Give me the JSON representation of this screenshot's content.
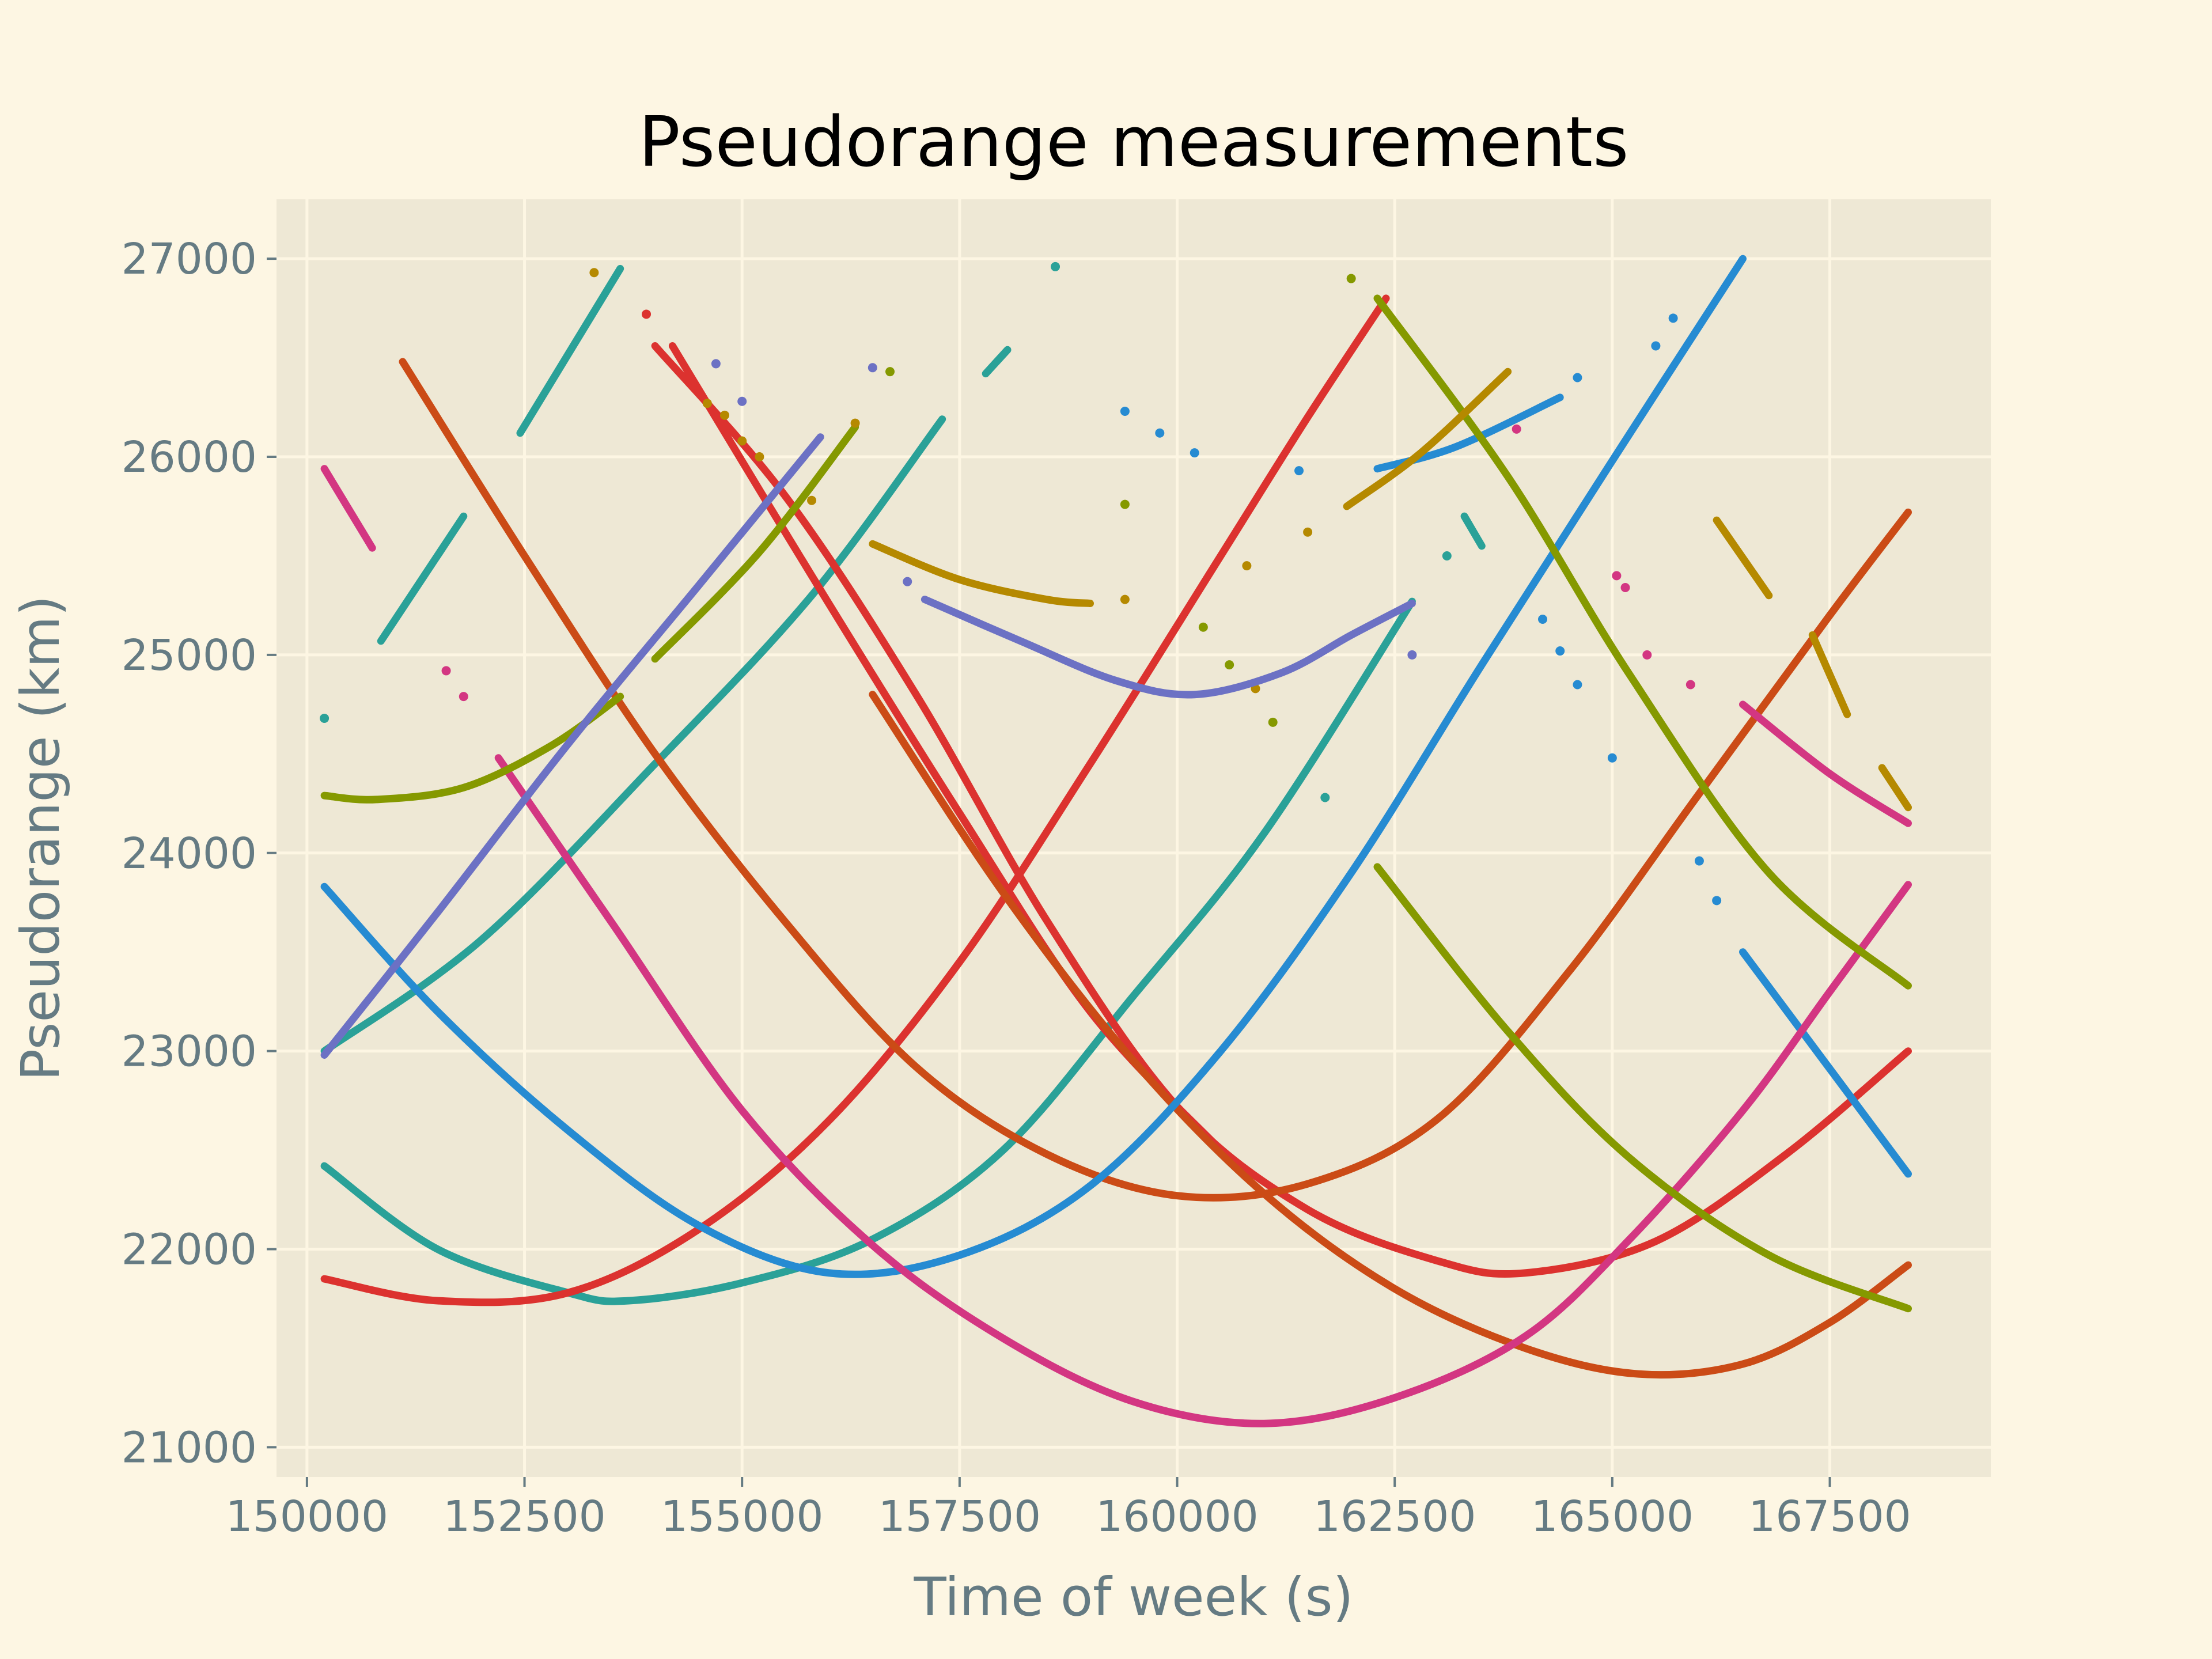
{
  "chart_data": {
    "type": "scatter",
    "title": "Pseudorange measurements",
    "xlabel": "Time of week (s)",
    "ylabel": "Pseudorange (km)",
    "xlim": [
      149650,
      169350
    ],
    "ylim": [
      20850,
      27300
    ],
    "x_ticks": [
      "150000",
      "152500",
      "155000",
      "157500",
      "160000",
      "162500",
      "165000",
      "167500"
    ],
    "x_tick_values": [
      150000,
      152500,
      155000,
      157500,
      160000,
      162500,
      165000,
      167500
    ],
    "y_ticks": [
      "21000",
      "22000",
      "23000",
      "24000",
      "25000",
      "26000",
      "27000"
    ],
    "y_tick_values": [
      21000,
      22000,
      23000,
      24000,
      25000,
      26000,
      27000
    ],
    "grid": true,
    "legend": "none",
    "colors": {
      "background": "#fdf6e3",
      "axes_face": "#eee8d5",
      "grid": "#fdf6e3",
      "text": "#657b83",
      "title": "#000000"
    },
    "series": [
      {
        "color": "#2aa198",
        "style": "line",
        "points": [
          [
            150200,
            22420
          ],
          [
            151500,
            22000
          ],
          [
            153000,
            21780
          ],
          [
            153700,
            21740
          ],
          [
            155000,
            21830
          ],
          [
            156500,
            22050
          ],
          [
            158000,
            22500
          ],
          [
            159500,
            23280
          ],
          [
            161000,
            24100
          ],
          [
            162700,
            25270
          ]
        ]
      },
      {
        "color": "#2aa198",
        "style": "line",
        "points": [
          [
            150200,
            23000
          ],
          [
            152000,
            23560
          ],
          [
            154000,
            24450
          ],
          [
            155800,
            25300
          ],
          [
            157300,
            26190
          ]
        ]
      },
      {
        "color": "#2aa198",
        "style": "line",
        "points": [
          [
            152450,
            26120
          ],
          [
            153600,
            26950
          ]
        ]
      },
      {
        "color": "#2aa198",
        "style": "line",
        "points": [
          [
            150850,
            25070
          ],
          [
            151800,
            25700
          ]
        ]
      },
      {
        "color": "#2aa198",
        "style": "line",
        "points": [
          [
            157800,
            26420
          ],
          [
            158050,
            26540
          ]
        ]
      },
      {
        "color": "#2aa198",
        "style": "line",
        "points": [
          [
            163300,
            25700
          ],
          [
            163500,
            25550
          ]
        ]
      },
      {
        "color": "#2aa198",
        "style": "dots",
        "points": [
          [
            150200,
            24680
          ],
          [
            158600,
            26960
          ],
          [
            161700,
            24280
          ],
          [
            163100,
            25500
          ]
        ]
      },
      {
        "color": "#dc322f",
        "style": "line",
        "points": [
          [
            150200,
            21850
          ],
          [
            151500,
            21740
          ],
          [
            153000,
            21780
          ],
          [
            154500,
            22100
          ],
          [
            156000,
            22650
          ],
          [
            157500,
            23450
          ],
          [
            159000,
            24450
          ],
          [
            160500,
            25500
          ],
          [
            161500,
            26200
          ],
          [
            162400,
            26800
          ]
        ]
      },
      {
        "color": "#dc322f",
        "style": "line",
        "points": [
          [
            154000,
            26560
          ],
          [
            155500,
            25800
          ],
          [
            157000,
            24800
          ],
          [
            158500,
            23660
          ],
          [
            160000,
            22720
          ],
          [
            161500,
            22200
          ],
          [
            163000,
            21940
          ],
          [
            164000,
            21880
          ],
          [
            165500,
            22040
          ],
          [
            167000,
            22480
          ],
          [
            168400,
            23000
          ]
        ]
      },
      {
        "color": "#dc322f",
        "style": "line",
        "points": [
          [
            154200,
            26560
          ],
          [
            155800,
            25400
          ],
          [
            157500,
            24200
          ],
          [
            159000,
            23200
          ],
          [
            160500,
            22500
          ]
        ]
      },
      {
        "color": "#dc322f",
        "style": "dots",
        "points": [
          [
            153900,
            26720
          ]
        ]
      },
      {
        "color": "#cb4b16",
        "style": "line",
        "points": [
          [
            151100,
            26480
          ],
          [
            152500,
            25500
          ],
          [
            154000,
            24500
          ],
          [
            155500,
            23650
          ],
          [
            157000,
            22920
          ],
          [
            158500,
            22480
          ],
          [
            160000,
            22270
          ],
          [
            161500,
            22330
          ],
          [
            163000,
            22660
          ],
          [
            164500,
            23400
          ],
          [
            166000,
            24300
          ],
          [
            167500,
            25200
          ],
          [
            168400,
            25720
          ]
        ]
      },
      {
        "color": "#cb4b16",
        "style": "line",
        "points": [
          [
            156500,
            24800
          ],
          [
            158000,
            23800
          ],
          [
            159500,
            22950
          ],
          [
            161000,
            22280
          ],
          [
            162500,
            21800
          ],
          [
            164000,
            21500
          ],
          [
            165300,
            21370
          ],
          [
            166500,
            21420
          ],
          [
            167500,
            21630
          ],
          [
            168400,
            21920
          ]
        ]
      },
      {
        "color": "#268bd2",
        "style": "line",
        "points": [
          [
            150200,
            23830
          ],
          [
            151500,
            23200
          ],
          [
            153000,
            22600
          ],
          [
            154500,
            22120
          ],
          [
            156000,
            21880
          ],
          [
            157500,
            21970
          ],
          [
            159000,
            22320
          ],
          [
            160500,
            23000
          ],
          [
            162000,
            23900
          ],
          [
            163500,
            24950
          ],
          [
            165000,
            25980
          ],
          [
            166500,
            27000
          ]
        ]
      },
      {
        "color": "#268bd2",
        "style": "line",
        "points": [
          [
            162300,
            25940
          ],
          [
            163200,
            26050
          ],
          [
            164400,
            26300
          ]
        ]
      },
      {
        "color": "#268bd2",
        "style": "line",
        "points": [
          [
            166500,
            23500
          ],
          [
            168400,
            22380
          ]
        ]
      },
      {
        "color": "#268bd2",
        "style": "dots",
        "points": [
          [
            159400,
            26230
          ],
          [
            159800,
            26120
          ],
          [
            160200,
            26020
          ],
          [
            161400,
            25930
          ],
          [
            164200,
            25180
          ],
          [
            164400,
            25020
          ],
          [
            164600,
            24850
          ],
          [
            165000,
            24480
          ],
          [
            165500,
            26560
          ],
          [
            165700,
            26700
          ],
          [
            166000,
            23960
          ],
          [
            166200,
            23760
          ],
          [
            164600,
            26400
          ]
        ]
      },
      {
        "color": "#d33682",
        "style": "line",
        "points": [
          [
            152200,
            24480
          ],
          [
            153500,
            23650
          ],
          [
            155000,
            22700
          ],
          [
            156500,
            22020
          ],
          [
            158000,
            21550
          ],
          [
            159500,
            21230
          ],
          [
            161000,
            21120
          ],
          [
            162500,
            21250
          ],
          [
            164000,
            21560
          ],
          [
            165200,
            22050
          ],
          [
            166500,
            22700
          ],
          [
            167500,
            23300
          ],
          [
            168400,
            23840
          ]
        ]
      },
      {
        "color": "#d33682",
        "style": "line",
        "points": [
          [
            150200,
            25940
          ],
          [
            150750,
            25540
          ]
        ]
      },
      {
        "color": "#d33682",
        "style": "line",
        "points": [
          [
            166500,
            24750
          ],
          [
            167500,
            24400
          ],
          [
            168400,
            24150
          ]
        ]
      },
      {
        "color": "#d33682",
        "style": "dots",
        "points": [
          [
            151600,
            24920
          ],
          [
            151800,
            24790
          ],
          [
            163900,
            26140
          ],
          [
            165050,
            25400
          ],
          [
            165150,
            25340
          ],
          [
            165400,
            25000
          ],
          [
            165900,
            24850
          ]
        ]
      },
      {
        "color": "#859900",
        "style": "line",
        "points": [
          [
            150200,
            24290
          ],
          [
            150800,
            24270
          ],
          [
            151800,
            24330
          ],
          [
            152800,
            24540
          ],
          [
            153600,
            24790
          ]
        ]
      },
      {
        "color": "#859900",
        "style": "line",
        "points": [
          [
            154000,
            24980
          ],
          [
            155200,
            25520
          ],
          [
            156300,
            26150
          ]
        ]
      },
      {
        "color": "#859900",
        "style": "line",
        "points": [
          [
            162300,
            26800
          ],
          [
            163800,
            25900
          ],
          [
            165200,
            24900
          ],
          [
            166800,
            23900
          ],
          [
            168400,
            23330
          ]
        ]
      },
      {
        "color": "#859900",
        "style": "line",
        "points": [
          [
            162300,
            23930
          ],
          [
            163800,
            23100
          ],
          [
            165200,
            22460
          ],
          [
            166800,
            21970
          ],
          [
            168400,
            21700
          ]
        ]
      },
      {
        "color": "#859900",
        "style": "dots",
        "points": [
          [
            156700,
            26430
          ],
          [
            159400,
            25760
          ],
          [
            160300,
            25140
          ],
          [
            160600,
            24950
          ],
          [
            161100,
            24660
          ],
          [
            162000,
            26900
          ]
        ]
      },
      {
        "color": "#b58900",
        "style": "line",
        "points": [
          [
            156500,
            25560
          ],
          [
            157500,
            25380
          ],
          [
            158500,
            25280
          ],
          [
            159000,
            25260
          ]
        ]
      },
      {
        "color": "#b58900",
        "style": "line",
        "points": [
          [
            161950,
            25750
          ],
          [
            162800,
            26020
          ],
          [
            163800,
            26430
          ]
        ]
      },
      {
        "color": "#b58900",
        "style": "line",
        "points": [
          [
            166200,
            25680
          ],
          [
            166800,
            25300
          ]
        ]
      },
      {
        "color": "#b58900",
        "style": "line",
        "points": [
          [
            167300,
            25100
          ],
          [
            167700,
            24700
          ]
        ]
      },
      {
        "color": "#b58900",
        "style": "line",
        "points": [
          [
            168100,
            24430
          ],
          [
            168400,
            24230
          ]
        ]
      },
      {
        "color": "#b58900",
        "style": "dots",
        "points": [
          [
            153300,
            26930
          ],
          [
            154600,
            26270
          ],
          [
            154800,
            26210
          ],
          [
            155000,
            26080
          ],
          [
            155200,
            26000
          ],
          [
            155800,
            25780
          ],
          [
            156300,
            26170
          ],
          [
            159400,
            25280
          ],
          [
            160800,
            25450
          ],
          [
            161500,
            25620
          ],
          [
            160900,
            24830
          ]
        ]
      },
      {
        "color": "#6c71c4",
        "style": "line",
        "points": [
          [
            150200,
            22980
          ],
          [
            151500,
            23700
          ],
          [
            153000,
            24550
          ],
          [
            154500,
            25350
          ],
          [
            155900,
            26100
          ]
        ]
      },
      {
        "color": "#6c71c4",
        "style": "line",
        "points": [
          [
            157100,
            25280
          ],
          [
            158200,
            25070
          ],
          [
            159300,
            24870
          ],
          [
            160200,
            24800
          ],
          [
            161200,
            24910
          ],
          [
            162000,
            25100
          ],
          [
            162700,
            25260
          ]
        ]
      },
      {
        "color": "#6c71c4",
        "style": "dots",
        "points": [
          [
            154700,
            26470
          ],
          [
            155000,
            26280
          ],
          [
            156500,
            26450
          ],
          [
            156900,
            25370
          ],
          [
            162700,
            25000
          ]
        ]
      }
    ]
  }
}
